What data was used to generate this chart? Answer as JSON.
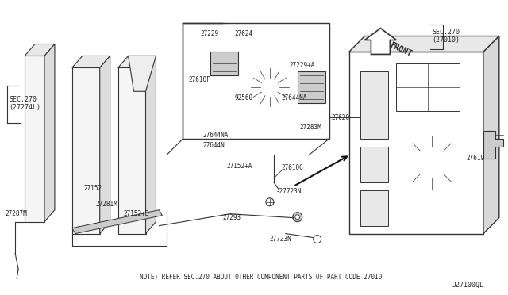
{
  "bg_color": "#ffffff",
  "lc": "#333333",
  "fig_width": 6.4,
  "fig_height": 3.72,
  "note_text": "NOTE) REFER SEC.270 ABOUT OTHER COMPONENT PARTS OF PART CODE 27010",
  "part_code": "J27100QL",
  "sec270_left": "SEC.270\n(27274L)",
  "sec270_right": "SEC.270\n(27010)",
  "front_label": "FRONT"
}
